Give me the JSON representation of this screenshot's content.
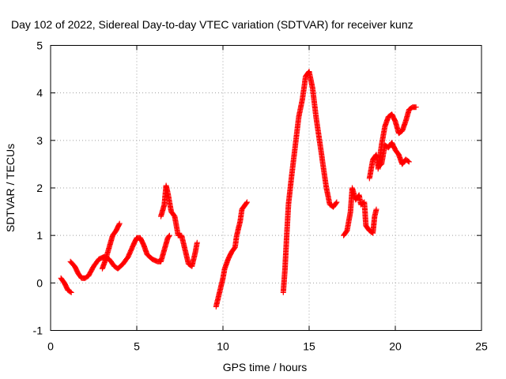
{
  "chart_data": {
    "type": "scatter",
    "title": "Day 102 of 2022, Sidereal Day-to-day VTEC variation (SDTVAR) for receiver kunz",
    "xlabel": "GPS time / hours",
    "ylabel": "SDTVAR / TECUs",
    "xlim": [
      0,
      25
    ],
    "ylim": [
      -1,
      5
    ],
    "xticks": [
      0,
      5,
      10,
      15,
      20,
      25
    ],
    "yticks": [
      -1,
      0,
      1,
      2,
      3,
      4,
      5
    ],
    "xtick_labels": [
      "0",
      "5",
      "10",
      "15",
      "20",
      "25"
    ],
    "ytick_labels": [
      "-1",
      "0",
      "1",
      "2",
      "3",
      "4",
      "5"
    ],
    "grid": true,
    "legend": "none",
    "marker": "plus",
    "color": "#ff0000",
    "segments": [
      [
        [
          0.6,
          0.1
        ],
        [
          0.8,
          0.0
        ],
        [
          1.0,
          -0.15
        ],
        [
          1.2,
          -0.2
        ]
      ],
      [
        [
          1.15,
          0.45
        ],
        [
          1.4,
          0.35
        ],
        [
          1.6,
          0.2
        ],
        [
          1.8,
          0.1
        ],
        [
          2.0,
          0.1
        ],
        [
          2.2,
          0.15
        ],
        [
          2.5,
          0.35
        ],
        [
          2.8,
          0.5
        ],
        [
          3.1,
          0.55
        ],
        [
          3.4,
          0.5
        ],
        [
          3.7,
          0.35
        ],
        [
          3.9,
          0.3
        ],
        [
          4.2,
          0.4
        ],
        [
          4.5,
          0.55
        ],
        [
          4.8,
          0.8
        ],
        [
          5.0,
          0.95
        ],
        [
          5.2,
          0.95
        ],
        [
          5.4,
          0.8
        ],
        [
          5.6,
          0.6
        ],
        [
          5.9,
          0.5
        ],
        [
          6.2,
          0.45
        ],
        [
          6.4,
          0.45
        ],
        [
          6.6,
          0.7
        ],
        [
          6.8,
          0.95
        ],
        [
          6.9,
          1.0
        ]
      ],
      [
        [
          3.0,
          0.3
        ],
        [
          3.2,
          0.5
        ],
        [
          3.4,
          0.75
        ],
        [
          3.6,
          1.0
        ],
        [
          3.8,
          1.1
        ],
        [
          4.0,
          1.25
        ]
      ],
      [
        [
          6.4,
          1.4
        ],
        [
          6.6,
          1.65
        ],
        [
          6.7,
          2.05
        ],
        [
          6.8,
          1.9
        ],
        [
          7.0,
          1.5
        ],
        [
          7.2,
          1.4
        ],
        [
          7.4,
          1.0
        ],
        [
          7.6,
          1.0
        ],
        [
          7.8,
          0.7
        ],
        [
          8.0,
          0.4
        ],
        [
          8.2,
          0.35
        ],
        [
          8.4,
          0.65
        ],
        [
          8.5,
          0.85
        ]
      ],
      [
        [
          9.6,
          -0.5
        ],
        [
          9.8,
          -0.2
        ],
        [
          10.0,
          0.1
        ],
        [
          10.1,
          0.3
        ],
        [
          10.3,
          0.5
        ],
        [
          10.5,
          0.65
        ],
        [
          10.7,
          0.75
        ],
        [
          10.8,
          1.0
        ],
        [
          11.0,
          1.3
        ],
        [
          11.1,
          1.55
        ],
        [
          11.3,
          1.65
        ],
        [
          11.4,
          1.7
        ]
      ],
      [
        [
          13.5,
          -0.2
        ],
        [
          13.6,
          0.3
        ],
        [
          13.7,
          1.0
        ],
        [
          13.8,
          1.65
        ],
        [
          14.0,
          2.3
        ],
        [
          14.2,
          2.9
        ],
        [
          14.4,
          3.5
        ],
        [
          14.6,
          3.85
        ],
        [
          14.8,
          4.35
        ],
        [
          15.0,
          4.45
        ],
        [
          15.2,
          4.1
        ],
        [
          15.4,
          3.5
        ],
        [
          15.6,
          3.0
        ],
        [
          15.8,
          2.5
        ],
        [
          16.0,
          2.0
        ],
        [
          16.2,
          1.65
        ],
        [
          16.4,
          1.6
        ],
        [
          16.6,
          1.7
        ]
      ],
      [
        [
          17.0,
          1.0
        ],
        [
          17.2,
          1.1
        ],
        [
          17.4,
          1.5
        ],
        [
          17.5,
          2.0
        ],
        [
          17.7,
          1.75
        ],
        [
          17.9,
          1.85
        ],
        [
          18.0,
          1.65
        ],
        [
          18.2,
          1.7
        ],
        [
          18.3,
          1.2
        ],
        [
          18.5,
          1.1
        ],
        [
          18.7,
          1.05
        ],
        [
          18.8,
          1.4
        ],
        [
          18.9,
          1.55
        ]
      ],
      [
        [
          18.5,
          2.2
        ],
        [
          18.7,
          2.6
        ],
        [
          18.9,
          2.7
        ],
        [
          19.0,
          2.45
        ],
        [
          19.2,
          2.5
        ],
        [
          19.4,
          2.9
        ],
        [
          19.6,
          2.85
        ],
        [
          19.8,
          2.95
        ],
        [
          20.0,
          2.8
        ],
        [
          20.2,
          2.7
        ],
        [
          20.4,
          2.5
        ],
        [
          20.6,
          2.6
        ],
        [
          20.8,
          2.55
        ]
      ],
      [
        [
          19.0,
          2.4
        ],
        [
          19.2,
          2.9
        ],
        [
          19.4,
          3.3
        ],
        [
          19.6,
          3.5
        ],
        [
          19.8,
          3.55
        ],
        [
          20.0,
          3.4
        ],
        [
          20.2,
          3.15
        ],
        [
          20.4,
          3.2
        ],
        [
          20.6,
          3.4
        ],
        [
          20.8,
          3.65
        ],
        [
          21.0,
          3.7
        ],
        [
          21.2,
          3.7
        ]
      ]
    ]
  }
}
